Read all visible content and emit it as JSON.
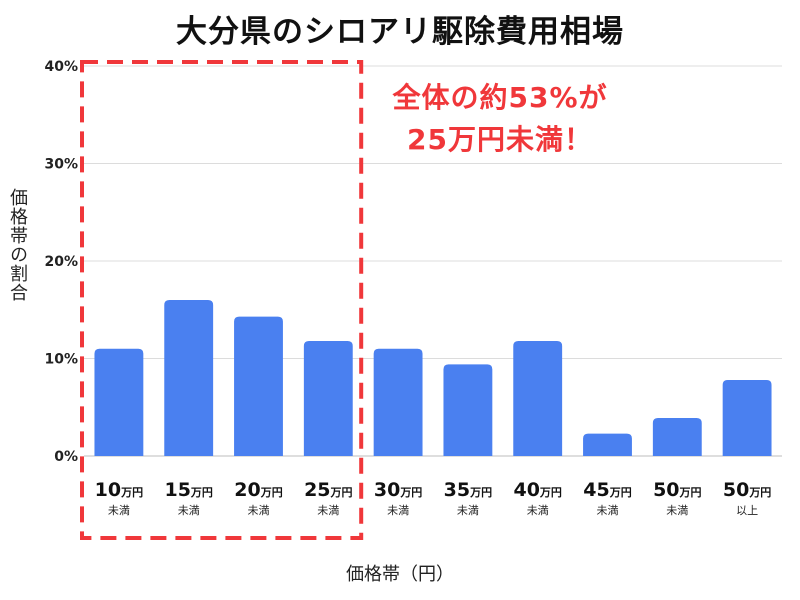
{
  "chart_data": {
    "type": "bar",
    "title": "大分県のシロアリ駆除費用相場",
    "xlabel": "価格帯（円）",
    "ylabel": "価格帯の割合",
    "ylim": [
      0,
      40
    ],
    "yticks": [
      "0%",
      "10%",
      "20%",
      "30%",
      "40%"
    ],
    "grid": true,
    "categories": [
      {
        "main": "10",
        "unit": "万円",
        "sub": "未満"
      },
      {
        "main": "15",
        "unit": "万円",
        "sub": "未満"
      },
      {
        "main": "20",
        "unit": "万円",
        "sub": "未満"
      },
      {
        "main": "25",
        "unit": "万円",
        "sub": "未満"
      },
      {
        "main": "30",
        "unit": "万円",
        "sub": "未満"
      },
      {
        "main": "35",
        "unit": "万円",
        "sub": "未満"
      },
      {
        "main": "40",
        "unit": "万円",
        "sub": "未満"
      },
      {
        "main": "45",
        "unit": "万円",
        "sub": "未満"
      },
      {
        "main": "50",
        "unit": "万円",
        "sub": "未満"
      },
      {
        "main": "50",
        "unit": "万円",
        "sub": "以上"
      }
    ],
    "values": [
      11,
      16,
      14.3,
      11.8,
      11,
      9.4,
      11.8,
      2.3,
      3.9,
      7.8
    ],
    "bar_color": "#4a80f0",
    "annotation": {
      "lines": [
        "全体の約53%が",
        "25万円未満！"
      ],
      "color": "#f0373a",
      "highlight_categories": [
        0,
        1,
        2,
        3
      ]
    }
  }
}
